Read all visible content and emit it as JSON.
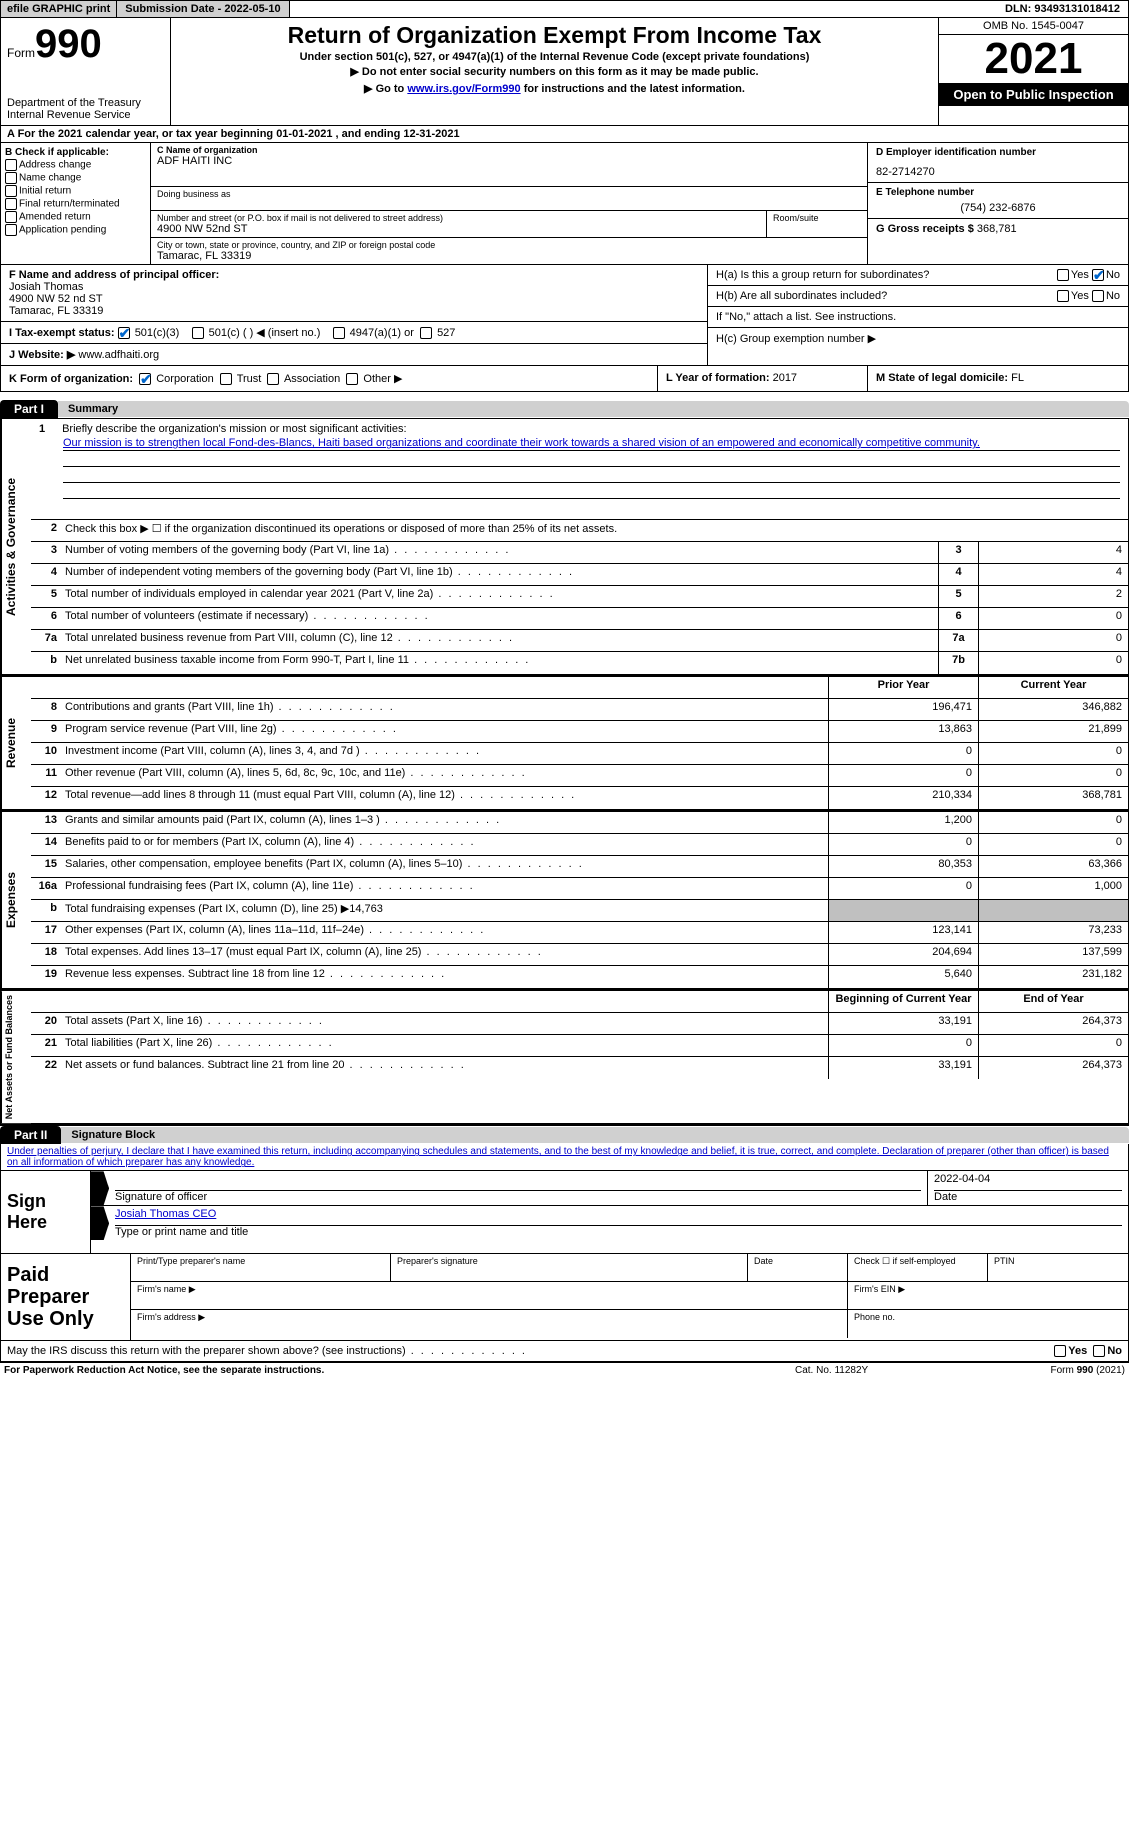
{
  "topbar": {
    "efile_label": "efile GRAPHIC print",
    "submission_label": "Submission Date - 2022-05-10",
    "dln_label": "DLN: 93493131018412"
  },
  "header": {
    "form_word": "Form",
    "form_number": "990",
    "dept1": "Department of the Treasury",
    "dept2": "Internal Revenue Service",
    "title": "Return of Organization Exempt From Income Tax",
    "sub1": "Under section 501(c), 527, or 4947(a)(1) of the Internal Revenue Code (except private foundations)",
    "sub2": "▶ Do not enter social security numbers on this form as it may be made public.",
    "sub3_pre": "▶ Go to ",
    "sub3_link": "www.irs.gov/Form990",
    "sub3_post": " for instructions and the latest information.",
    "omb": "OMB No. 1545-0047",
    "year": "2021",
    "inspection": "Open to Public Inspection"
  },
  "lineA": "A For the 2021 calendar year, or tax year beginning 01-01-2021     , and ending 12-31-2021",
  "colB": {
    "header": "B Check if applicable:",
    "items": [
      "Address change",
      "Name change",
      "Initial return",
      "Final return/terminated",
      "Amended return",
      "Application pending"
    ]
  },
  "colC": {
    "name_label": "C Name of organization",
    "name": "ADF HAITI INC",
    "dba_label": "Doing business as",
    "dba": "",
    "street_label": "Number and street (or P.O. box if mail is not delivered to street address)",
    "street": "4900 NW 52nd ST",
    "room_label": "Room/suite",
    "city_label": "City or town, state or province, country, and ZIP or foreign postal code",
    "city": "Tamarac, FL  33319"
  },
  "colD": {
    "ein_label": "D Employer identification number",
    "ein": "82-2714270",
    "phone_label": "E Telephone number",
    "phone": "(754) 232-6876",
    "gross_label": "G Gross receipts $",
    "gross": "368,781"
  },
  "F": {
    "label": "F  Name and address of principal officer:",
    "name": "Josiah Thomas",
    "addr1": "4900 NW 52 nd ST",
    "addr2": "Tamarac, FL  33319"
  },
  "H": {
    "a_label": "H(a)  Is this a group return for subordinates?",
    "b_label": "H(b)  Are all subordinates included?",
    "b_note": "If \"No,\" attach a list. See instructions.",
    "c_label": "H(c)  Group exemption number ▶"
  },
  "I": {
    "label": "I    Tax-exempt status:",
    "opt1": "501(c)(3)",
    "opt2": "501(c) (  ) ◀ (insert no.)",
    "opt3": "4947(a)(1) or",
    "opt4": "527"
  },
  "J": {
    "label": "J   Website: ▶ ",
    "value": "www.adfhaiti.org"
  },
  "K": {
    "label": "K Form of organization:",
    "opts": [
      "Corporation",
      "Trust",
      "Association",
      "Other ▶"
    ]
  },
  "L": {
    "label": "L Year of formation:",
    "value": "2017"
  },
  "M": {
    "label": "M State of legal domicile:",
    "value": "FL"
  },
  "part1": {
    "tag": "Part I",
    "title": "Summary"
  },
  "mission": {
    "num": "1",
    "label": "Briefly describe the organization's mission or most significant activities:",
    "text": "Our mission is to strengthen local Fond-des-Blancs, Haiti based organizations and coordinate their work towards a shared vision of an empowered and economically competitive community."
  },
  "governance_lines": [
    {
      "n": "2",
      "desc": "Check this box ▶ ☐  if the organization discontinued its operations or disposed of more than 25% of its net assets.",
      "box": "",
      "val": ""
    },
    {
      "n": "3",
      "desc": "Number of voting members of the governing body (Part VI, line 1a)",
      "box": "3",
      "val": "4"
    },
    {
      "n": "4",
      "desc": "Number of independent voting members of the governing body (Part VI, line 1b)",
      "box": "4",
      "val": "4"
    },
    {
      "n": "5",
      "desc": "Total number of individuals employed in calendar year 2021 (Part V, line 2a)",
      "box": "5",
      "val": "2"
    },
    {
      "n": "6",
      "desc": "Total number of volunteers (estimate if necessary)",
      "box": "6",
      "val": "0"
    },
    {
      "n": "7a",
      "desc": "Total unrelated business revenue from Part VIII, column (C), line 12",
      "box": "7a",
      "val": "0"
    },
    {
      "n": "b",
      "desc": "Net unrelated business taxable income from Form 990-T, Part I, line 11",
      "box": "7b",
      "val": "0"
    }
  ],
  "col_headers": {
    "prior": "Prior Year",
    "current": "Current Year"
  },
  "revenue_lines": [
    {
      "n": "8",
      "desc": "Contributions and grants (Part VIII, line 1h)",
      "prior": "196,471",
      "current": "346,882"
    },
    {
      "n": "9",
      "desc": "Program service revenue (Part VIII, line 2g)",
      "prior": "13,863",
      "current": "21,899"
    },
    {
      "n": "10",
      "desc": "Investment income (Part VIII, column (A), lines 3, 4, and 7d )",
      "prior": "0",
      "current": "0"
    },
    {
      "n": "11",
      "desc": "Other revenue (Part VIII, column (A), lines 5, 6d, 8c, 9c, 10c, and 11e)",
      "prior": "0",
      "current": "0"
    },
    {
      "n": "12",
      "desc": "Total revenue—add lines 8 through 11 (must equal Part VIII, column (A), line 12)",
      "prior": "210,334",
      "current": "368,781"
    }
  ],
  "expense_lines": [
    {
      "n": "13",
      "desc": "Grants and similar amounts paid (Part IX, column (A), lines 1–3 )",
      "prior": "1,200",
      "current": "0"
    },
    {
      "n": "14",
      "desc": "Benefits paid to or for members (Part IX, column (A), line 4)",
      "prior": "0",
      "current": "0"
    },
    {
      "n": "15",
      "desc": "Salaries, other compensation, employee benefits (Part IX, column (A), lines 5–10)",
      "prior": "80,353",
      "current": "63,366"
    },
    {
      "n": "16a",
      "desc": "Professional fundraising fees (Part IX, column (A), line 11e)",
      "prior": "0",
      "current": "1,000"
    },
    {
      "n": "b",
      "desc": "Total fundraising expenses (Part IX, column (D), line 25) ▶14,763",
      "prior": "grey",
      "current": "grey"
    },
    {
      "n": "17",
      "desc": "Other expenses (Part IX, column (A), lines 11a–11d, 11f–24e)",
      "prior": "123,141",
      "current": "73,233"
    },
    {
      "n": "18",
      "desc": "Total expenses. Add lines 13–17 (must equal Part IX, column (A), line 25)",
      "prior": "204,694",
      "current": "137,599"
    },
    {
      "n": "19",
      "desc": "Revenue less expenses. Subtract line 18 from line 12",
      "prior": "5,640",
      "current": "231,182"
    }
  ],
  "net_headers": {
    "begin": "Beginning of Current Year",
    "end": "End of Year"
  },
  "net_lines": [
    {
      "n": "20",
      "desc": "Total assets (Part X, line 16)",
      "prior": "33,191",
      "current": "264,373"
    },
    {
      "n": "21",
      "desc": "Total liabilities (Part X, line 26)",
      "prior": "0",
      "current": "0"
    },
    {
      "n": "22",
      "desc": "Net assets or fund balances. Subtract line 21 from line 20",
      "prior": "33,191",
      "current": "264,373"
    }
  ],
  "part2": {
    "tag": "Part II",
    "title": "Signature Block"
  },
  "sig_decl": "Under penalties of perjury, I declare that I have examined this return, including accompanying schedules and statements, and to the best of my knowledge and belief, it is true, correct, and complete. Declaration of preparer (other than officer) is based on all information of which preparer has any knowledge.",
  "sign": {
    "here": "Sign Here",
    "sig_label": "Signature of officer",
    "date_val": "2022-04-04",
    "date_label": "Date",
    "name": "Josiah Thomas  CEO",
    "name_label": "Type or print name and title"
  },
  "prep": {
    "here": "Paid Preparer Use Only",
    "c1": "Print/Type preparer's name",
    "c2": "Preparer's signature",
    "c3": "Date",
    "c4": "Check ☐ if self-employed",
    "c5": "PTIN",
    "firm_name": "Firm's name    ▶",
    "firm_ein": "Firm's EIN ▶",
    "firm_addr": "Firm's address ▶",
    "phone": "Phone no."
  },
  "discuss": "May the IRS discuss this return with the preparer shown above? (see instructions)",
  "footer": {
    "left": "For Paperwork Reduction Act Notice, see the separate instructions.",
    "mid": "Cat. No. 11282Y",
    "right": "Form 990 (2021)"
  },
  "labels": {
    "yes": "Yes",
    "no": "No"
  },
  "vlabels": {
    "gov": "Activities & Governance",
    "rev": "Revenue",
    "exp": "Expenses",
    "net": "Net Assets or Fund Balances"
  }
}
